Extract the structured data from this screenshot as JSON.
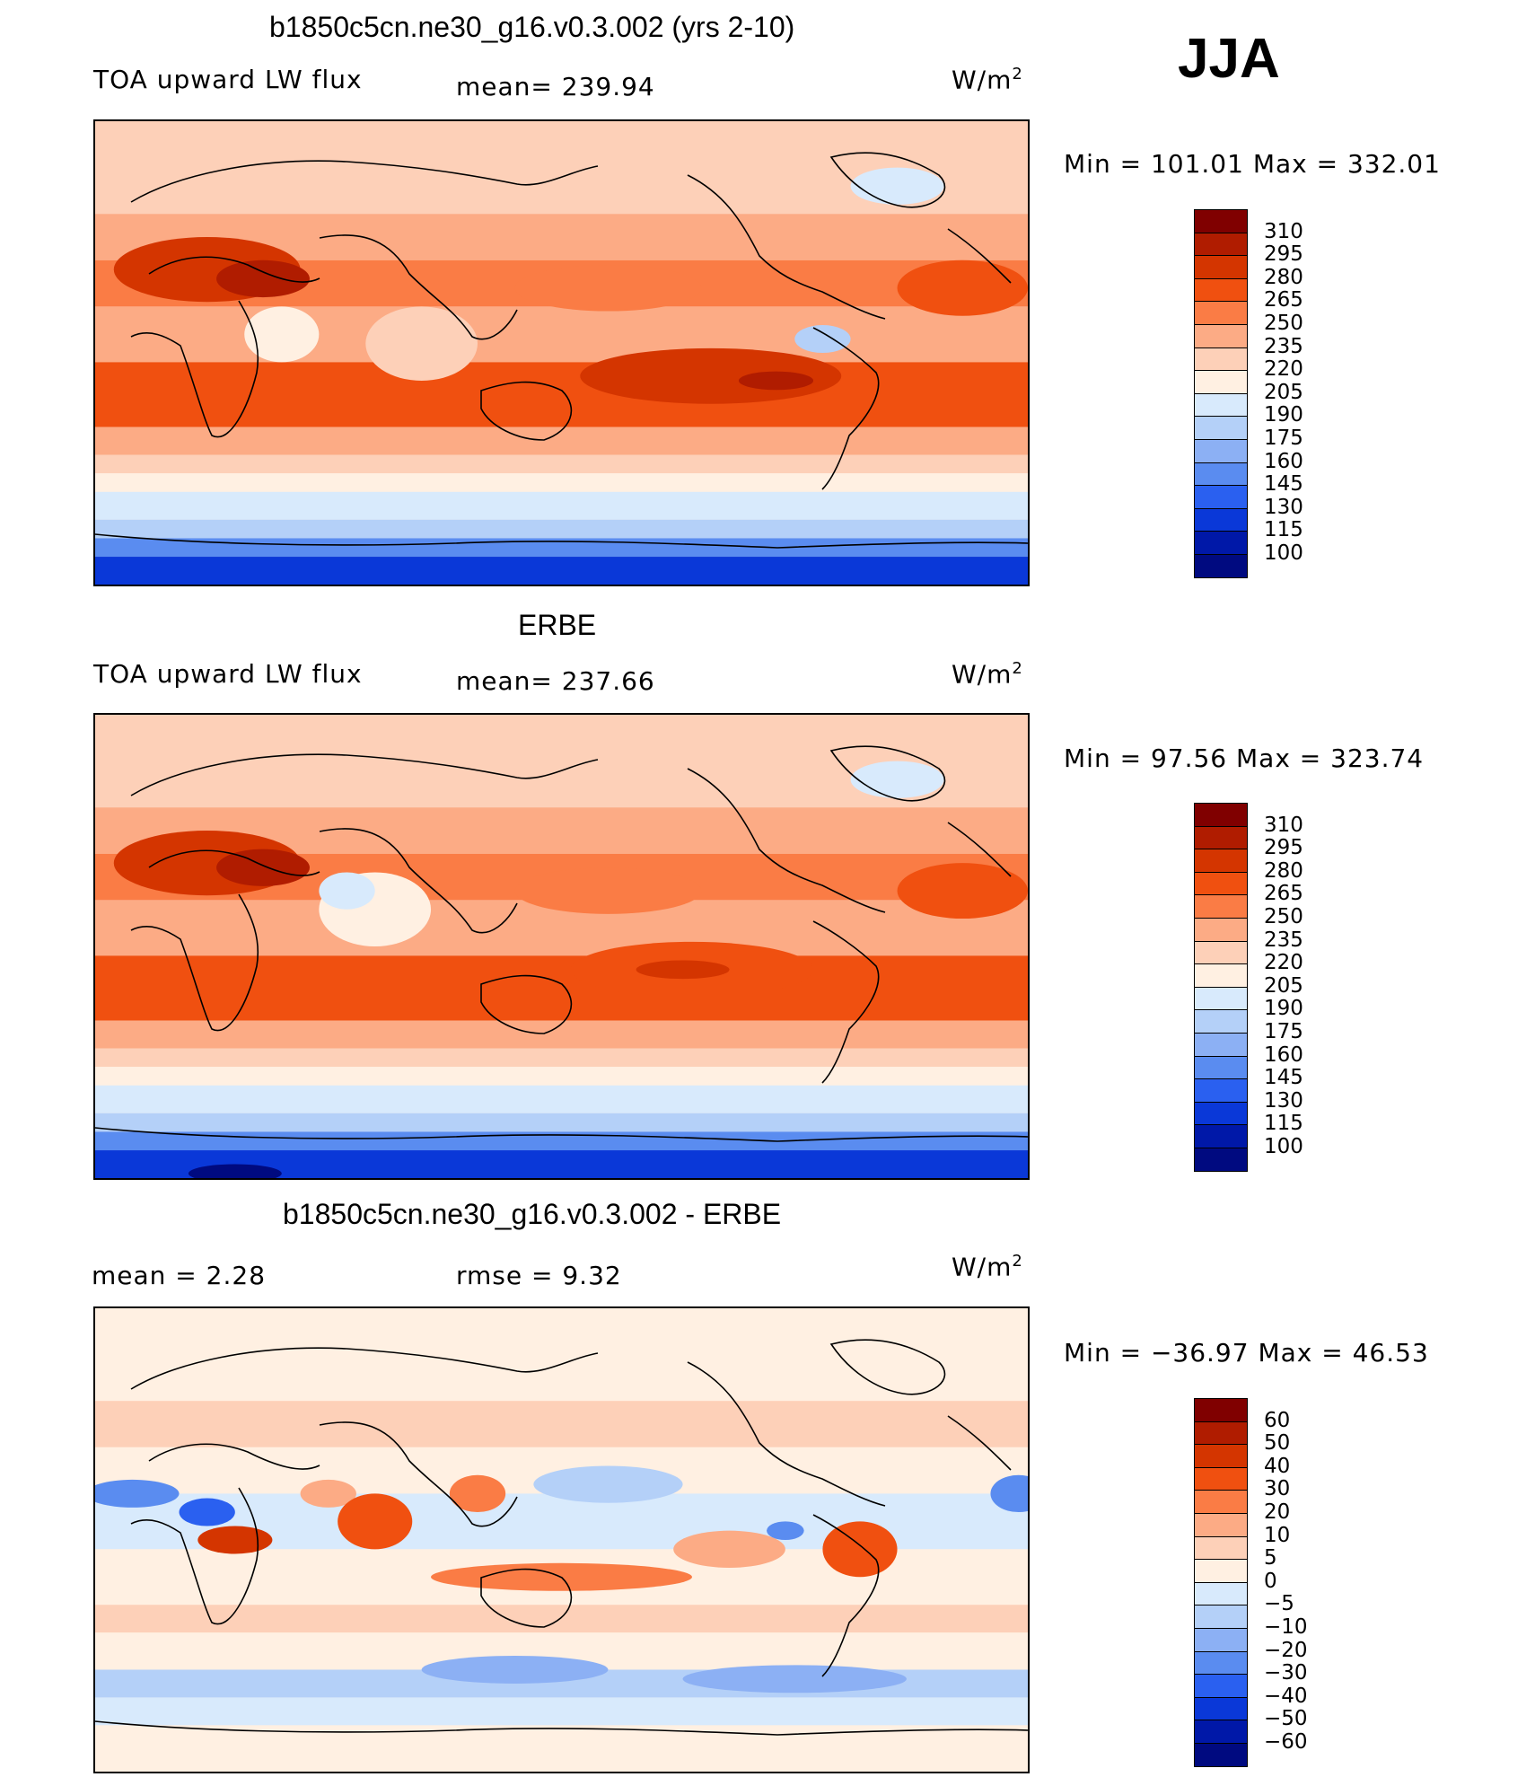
{
  "season": "JJA",
  "chart_data": [
    {
      "type": "heatmap",
      "title": "b1850c5cn.ne30_g16.v0.3.002 (yrs 2-10)",
      "left_subtitle": "TOA upward LW flux",
      "stat_text": "mean= 239.94",
      "units": "W/m",
      "units_sup": "2",
      "minmax_text": "Min  =  101.01  Max  =  332.01",
      "colorbar_labels": [
        "310",
        "295",
        "280",
        "265",
        "250",
        "235",
        "220",
        "205",
        "190",
        "175",
        "160",
        "145",
        "130",
        "115",
        "100"
      ],
      "colorbar_colors": [
        "#800000",
        "#b01c00",
        "#d43500",
        "#f05010",
        "#fa7c45",
        "#fcab85",
        "#fdd0b8",
        "#fff0e2",
        "#d8eafc",
        "#b4d0f8",
        "#8cb0f4",
        "#5a8cf0",
        "#2a60f0",
        "#0a38d8",
        "#0018a8",
        "#000a80"
      ]
    },
    {
      "type": "heatmap",
      "title": "ERBE",
      "left_subtitle": "TOA upward LW flux",
      "stat_text": "mean= 237.66",
      "units": "W/m",
      "units_sup": "2",
      "minmax_text": "Min  =    97.56  Max  =  323.74",
      "colorbar_labels": [
        "310",
        "295",
        "280",
        "265",
        "250",
        "235",
        "220",
        "205",
        "190",
        "175",
        "160",
        "145",
        "130",
        "115",
        "100"
      ],
      "colorbar_colors": [
        "#800000",
        "#b01c00",
        "#d43500",
        "#f05010",
        "#fa7c45",
        "#fcab85",
        "#fdd0b8",
        "#fff0e2",
        "#d8eafc",
        "#b4d0f8",
        "#8cb0f4",
        "#5a8cf0",
        "#2a60f0",
        "#0a38d8",
        "#0018a8",
        "#000a80"
      ]
    },
    {
      "type": "heatmap",
      "title": "b1850c5cn.ne30_g16.v0.3.002 - ERBE",
      "left_subtitle": "mean  =      2.28",
      "stat_text": "rmse  =      9.32",
      "units": "W/m",
      "units_sup": "2",
      "minmax_text": "Min  =  −36.97  Max  =    46.53",
      "colorbar_labels": [
        "60",
        "50",
        "40",
        "30",
        "20",
        "10",
        "5",
        "0",
        "−5",
        "−10",
        "−20",
        "−30",
        "−40",
        "−50",
        "−60"
      ],
      "colorbar_colors": [
        "#800000",
        "#b01c00",
        "#d43500",
        "#f05010",
        "#fa7c45",
        "#fcab85",
        "#fdd0b8",
        "#fff0e2",
        "#d8eafc",
        "#b4d0f8",
        "#8cb0f4",
        "#5a8cf0",
        "#2a60f0",
        "#0a38d8",
        "#0018a8",
        "#000a80"
      ]
    }
  ]
}
